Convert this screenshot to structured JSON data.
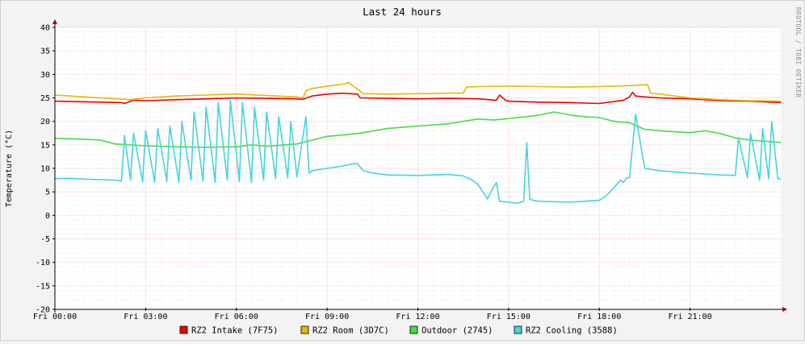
{
  "chart_data": {
    "type": "line",
    "title": "Last 24 hours",
    "ylabel": "Temperature (°C)",
    "watermark": "RRDTOOL / TOBI OETIKER",
    "xlim": [
      0,
      24
    ],
    "ylim": [
      -20,
      40
    ],
    "yticks": [
      -20,
      -15,
      -10,
      -5,
      0,
      5,
      10,
      15,
      20,
      25,
      30,
      35,
      40
    ],
    "xticks": [
      {
        "x": 0,
        "label": "Fri 00:00"
      },
      {
        "x": 3,
        "label": "Fri 03:00"
      },
      {
        "x": 6,
        "label": "Fri 06:00"
      },
      {
        "x": 9,
        "label": "Fri 09:00"
      },
      {
        "x": 12,
        "label": "Fri 12:00"
      },
      {
        "x": 15,
        "label": "Fri 15:00"
      },
      {
        "x": 18,
        "label": "Fri 18:00"
      },
      {
        "x": 21,
        "label": "Fri 21:00"
      }
    ],
    "grid": true,
    "legend_position": "bottom",
    "series": [
      {
        "name": "RZ2 Intake (7F75)",
        "color": "#ee0000",
        "x": [
          0,
          2.2,
          2.3,
          2.6,
          3.0,
          4.0,
          5.0,
          6.0,
          7.0,
          8.0,
          8.2,
          8.5,
          9.0,
          9.5,
          10.0,
          10.1,
          11.0,
          12.0,
          13.0,
          14.0,
          14.6,
          14.7,
          14.9,
          15.0,
          16.0,
          17.0,
          18.0,
          18.8,
          19.0,
          19.1,
          19.2,
          19.5,
          20.0,
          21.0,
          22.0,
          23.0,
          24.0
        ],
        "y": [
          24.3,
          24.0,
          23.8,
          24.5,
          24.4,
          24.6,
          24.8,
          25.0,
          24.9,
          24.8,
          24.7,
          25.4,
          25.8,
          26.0,
          25.8,
          25.0,
          24.9,
          24.8,
          24.9,
          24.8,
          24.5,
          25.6,
          24.5,
          24.3,
          24.1,
          24.0,
          23.8,
          24.5,
          25.2,
          26.2,
          25.4,
          25.2,
          25.0,
          24.8,
          24.4,
          24.3,
          24.0
        ]
      },
      {
        "name": "RZ2 Room (3D7C)",
        "color": "#e6b800",
        "x": [
          0,
          1.0,
          2.0,
          2.5,
          3.0,
          4.0,
          5.0,
          6.0,
          7.0,
          8.0,
          8.2,
          8.3,
          8.5,
          9.0,
          9.6,
          9.7,
          10.1,
          10.2,
          11.0,
          12.0,
          13.0,
          13.5,
          13.6,
          14.0,
          15.0,
          16.0,
          17.0,
          18.0,
          19.0,
          19.6,
          19.7,
          20.0,
          21.0,
          22.0,
          23.0,
          24.0
        ],
        "y": [
          25.6,
          25.2,
          24.8,
          24.6,
          25.0,
          25.4,
          25.6,
          25.8,
          25.5,
          25.2,
          25.0,
          26.5,
          27.0,
          27.5,
          28.0,
          28.3,
          26.4,
          25.9,
          25.8,
          25.9,
          26.0,
          26.0,
          27.3,
          27.4,
          27.5,
          27.4,
          27.3,
          27.4,
          27.6,
          27.8,
          26.0,
          25.8,
          25.0,
          24.6,
          24.4,
          24.3
        ]
      },
      {
        "name": "Outdoor (2745)",
        "color": "#44dd44",
        "x": [
          0,
          1.0,
          1.5,
          2.0,
          3.0,
          4.0,
          5.0,
          6.0,
          6.5,
          7.0,
          8.0,
          9.0,
          10.0,
          11.0,
          12.0,
          13.0,
          14.0,
          14.5,
          15.0,
          16.0,
          16.5,
          17.0,
          17.5,
          18.0,
          18.5,
          19.0,
          19.5,
          20.0,
          21.0,
          21.5,
          22.0,
          22.5,
          23.0,
          24.0
        ],
        "y": [
          16.4,
          16.2,
          16.0,
          15.2,
          14.8,
          14.6,
          14.5,
          14.6,
          15.0,
          14.7,
          15.2,
          16.8,
          17.4,
          18.5,
          19.0,
          19.5,
          20.5,
          20.3,
          20.6,
          21.3,
          22.0,
          21.4,
          21.0,
          20.8,
          20.0,
          19.7,
          18.3,
          18.0,
          17.6,
          18.0,
          17.4,
          16.5,
          16.0,
          15.5
        ]
      },
      {
        "name": "RZ2 Cooling (3588)",
        "color": "#44d4e0",
        "x": [
          0,
          0.5,
          1.0,
          1.5,
          2.0,
          2.2,
          2.3,
          2.5,
          2.6,
          2.9,
          3.0,
          3.3,
          3.4,
          3.7,
          3.8,
          4.1,
          4.2,
          4.5,
          4.6,
          4.9,
          5.0,
          5.3,
          5.4,
          5.7,
          5.8,
          6.1,
          6.2,
          6.5,
          6.6,
          6.9,
          7.0,
          7.3,
          7.4,
          7.7,
          7.8,
          8.0,
          8.3,
          8.4,
          8.5,
          9.0,
          9.5,
          9.9,
          10.0,
          10.2,
          10.5,
          11.0,
          12.0,
          13.0,
          13.5,
          13.8,
          14.0,
          14.3,
          14.5,
          14.6,
          14.7,
          15.0,
          15.3,
          15.5,
          15.6,
          15.7,
          15.8,
          16.0,
          17.0,
          17.5,
          18.0,
          18.2,
          18.5,
          18.7,
          18.8,
          18.9,
          19.0,
          19.2,
          19.5,
          20.0,
          21.0,
          21.5,
          22.0,
          22.5,
          22.6,
          22.9,
          23.0,
          23.3,
          23.4,
          23.6,
          23.7,
          23.9,
          24.0
        ],
        "y": [
          7.8,
          7.9,
          7.7,
          7.6,
          7.5,
          7.3,
          17.0,
          7.5,
          17.5,
          7.2,
          18.0,
          7.0,
          18.5,
          7.2,
          19.0,
          7.0,
          20.0,
          7.5,
          22.0,
          7.2,
          23.0,
          7.0,
          24.0,
          7.5,
          24.5,
          7.2,
          24.0,
          7.0,
          23.0,
          7.5,
          22.0,
          7.8,
          21.0,
          8.0,
          20.0,
          8.2,
          21.0,
          9.0,
          9.5,
          10.0,
          10.5,
          11.0,
          11.0,
          9.5,
          9.0,
          8.6,
          8.5,
          8.7,
          8.4,
          7.5,
          6.5,
          3.5,
          6.0,
          7.0,
          3.0,
          2.8,
          2.6,
          3.0,
          15.5,
          3.5,
          3.2,
          3.0,
          2.8,
          3.0,
          3.2,
          4.0,
          6.0,
          7.5,
          7.0,
          8.0,
          8.0,
          21.5,
          10.0,
          9.5,
          9.0,
          8.8,
          8.6,
          8.5,
          16.5,
          8.0,
          17.5,
          7.5,
          18.5,
          7.8,
          20.0,
          7.8,
          7.8
        ]
      }
    ]
  }
}
